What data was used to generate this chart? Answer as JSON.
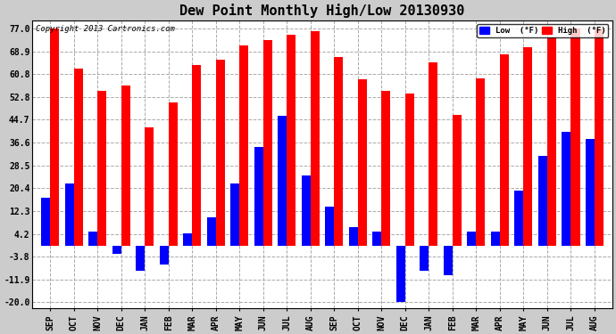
{
  "title": "Dew Point Monthly High/Low 20130930",
  "copyright": "Copyright 2013 Cartronics.com",
  "months": [
    "SEP",
    "OCT",
    "NOV",
    "DEC",
    "JAN",
    "FEB",
    "MAR",
    "APR",
    "MAY",
    "JUN",
    "JUL",
    "AUG",
    "SEP",
    "OCT",
    "NOV",
    "DEC",
    "JAN",
    "FEB",
    "MAR",
    "APR",
    "MAY",
    "JUN",
    "JUL",
    "AUG"
  ],
  "high_values": [
    77.0,
    63.0,
    55.0,
    57.0,
    42.0,
    51.0,
    64.0,
    66.0,
    71.0,
    73.0,
    75.0,
    76.0,
    67.0,
    59.0,
    55.0,
    54.0,
    65.0,
    46.5,
    59.5,
    68.0,
    70.5,
    74.0,
    77.0,
    77.0
  ],
  "low_values": [
    17.0,
    22.0,
    5.0,
    -3.0,
    -9.0,
    -6.5,
    4.5,
    10.0,
    22.0,
    35.0,
    46.0,
    25.0,
    14.0,
    6.5,
    5.0,
    -20.0,
    -9.0,
    -10.5,
    5.0,
    5.0,
    19.5,
    32.0,
    40.5,
    38.0
  ],
  "high_color": "#ff0000",
  "low_color": "#0000ff",
  "background_color": "#cccccc",
  "plot_bg_color": "#ffffff",
  "yticks": [
    77.0,
    68.9,
    60.8,
    52.8,
    44.7,
    36.6,
    28.5,
    20.4,
    12.3,
    4.2,
    -3.8,
    -11.9,
    -20.0
  ],
  "ylim": [
    -22.0,
    80.0
  ],
  "bar_width": 0.38,
  "title_fontsize": 11,
  "tick_fontsize": 7,
  "legend_low_label": "Low  (°F)",
  "legend_high_label": "High  (°F)"
}
